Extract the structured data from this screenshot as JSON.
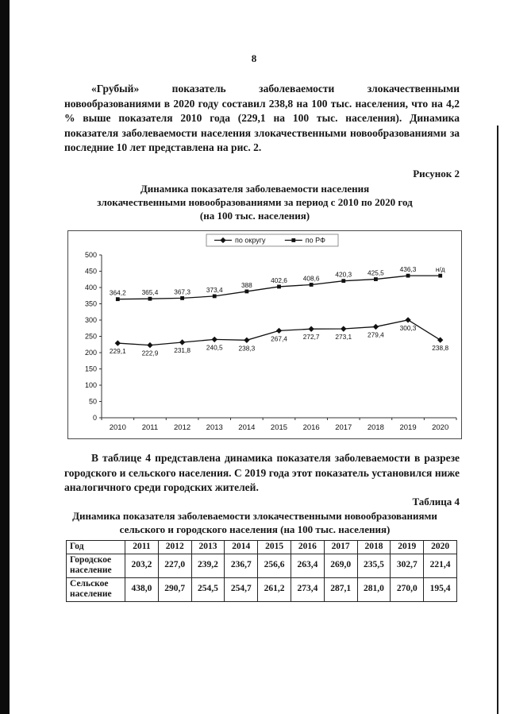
{
  "page": {
    "number": "8"
  },
  "paragraphs": {
    "p1": "«Грубый» показатель заболеваемости злокачественными новообразованиями в 2020 году составил 238,8 на 100 тыс. населения, что на 4,2 % выше показателя 2010 года (229,1 на 100 тыс. населения). Динамика показателя заболеваемости населения злокачественными новообразованиями за последние 10 лет представлена на рис. 2.",
    "p2": "В таблице 4 представлена динамика показателя заболеваемости в разрезе городского и сельского населения. С 2019 года этот показатель установился ниже аналогичного среди городских жителей."
  },
  "figure": {
    "caption": "Рисунок 2",
    "title_line1": "Динамика показателя заболеваемости населения",
    "title_line2": "злокачественными новообразованиями за период с 2010 по 2020 год",
    "title_line3": "(на 100 тыс. населения)"
  },
  "chart_data": {
    "type": "line",
    "categories": [
      "2010",
      "2011",
      "2012",
      "2013",
      "2014",
      "2015",
      "2016",
      "2017",
      "2018",
      "2019",
      "2020"
    ],
    "ylim": [
      0,
      500
    ],
    "ytick_step": 50,
    "grid": false,
    "legend_position": "top",
    "series": [
      {
        "name": "по округу",
        "marker": "diamond",
        "values": [
          229.1,
          222.9,
          231.8,
          240.5,
          238.3,
          267.4,
          272.7,
          273.1,
          279.4,
          300.3,
          238.8
        ],
        "labels": [
          "229,1",
          "222,9",
          "231,8",
          "240,5",
          "238,3",
          "267,4",
          "272,7",
          "273,1",
          "279,4",
          "300,3",
          "238,8"
        ],
        "label_position": "below"
      },
      {
        "name": "по РФ",
        "marker": "square",
        "values": [
          364.2,
          365.4,
          367.3,
          373.4,
          388,
          402.6,
          408.6,
          420.3,
          425.5,
          436.3,
          null
        ],
        "labels": [
          "364,2",
          "365,4",
          "367,3",
          "373,4",
          "388",
          "402,6",
          "408,6",
          "420,3",
          "425,5",
          "436,3",
          "н/д"
        ],
        "label_position": "above"
      }
    ]
  },
  "table": {
    "caption": "Таблица 4",
    "title_line1": "Динамика показателя заболеваемости злокачественными новообразованиями",
    "title_line2": "сельского и городского населения (на 100 тыс. населения)",
    "columns": [
      "Год",
      "2011",
      "2012",
      "2013",
      "2014",
      "2015",
      "2016",
      "2017",
      "2018",
      "2019",
      "2020"
    ],
    "rows": [
      {
        "label": "Городское население",
        "values": [
          "203,2",
          "227,0",
          "239,2",
          "236,7",
          "256,6",
          "263,4",
          "269,0",
          "235,5",
          "302,7",
          "221,4"
        ]
      },
      {
        "label": "Сельское население",
        "values": [
          "438,0",
          "290,7",
          "254,5",
          "254,7",
          "261,2",
          "273,4",
          "287,1",
          "281,0",
          "270,0",
          "195,4"
        ]
      }
    ]
  },
  "colors": {
    "ink": "#161616",
    "page": "#ffffff",
    "scan_border": "#0b0b0b"
  }
}
